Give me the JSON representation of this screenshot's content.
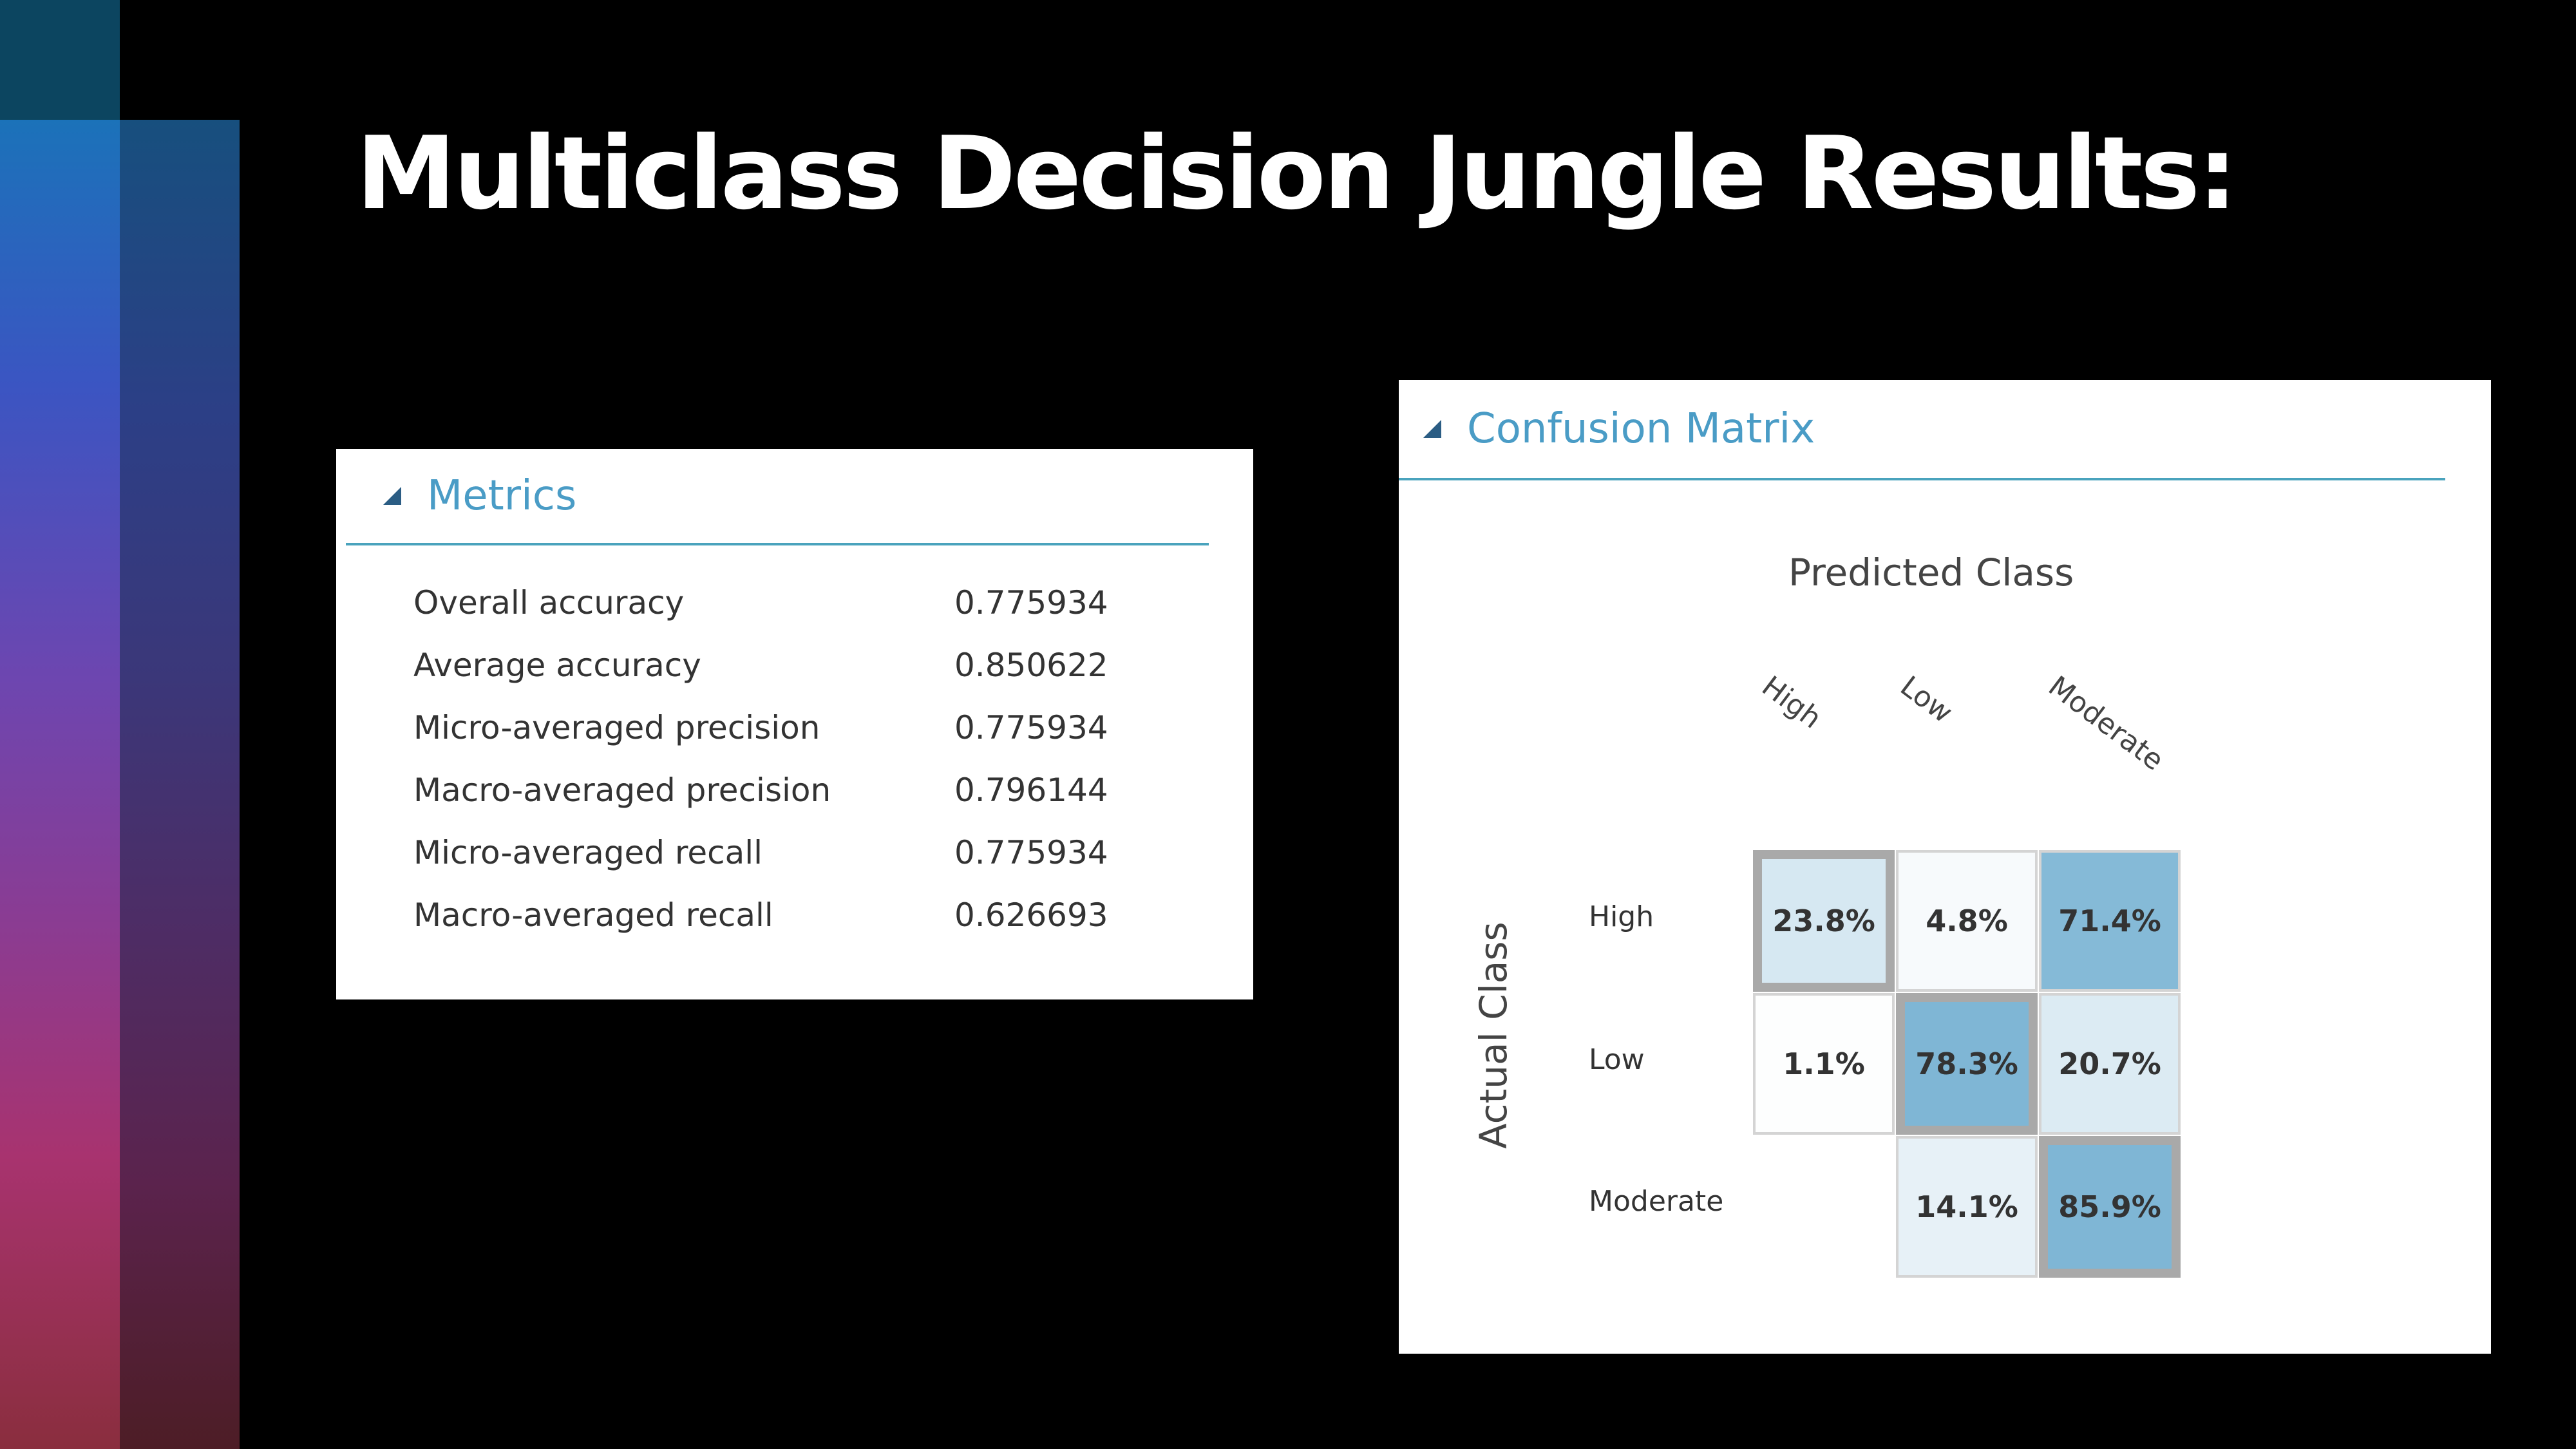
{
  "slide": {
    "title": "Multiclass Decision Jungle Results:"
  },
  "metrics": {
    "title": "Metrics",
    "rows": [
      {
        "label": "Overall accuracy",
        "value": "0.775934"
      },
      {
        "label": "Average accuracy",
        "value": "0.850622"
      },
      {
        "label": "Micro-averaged precision",
        "value": "0.775934"
      },
      {
        "label": "Macro-averaged precision",
        "value": "0.796144"
      },
      {
        "label": "Micro-averaged recall",
        "value": "0.775934"
      },
      {
        "label": "Macro-averaged recall",
        "value": "0.626693"
      }
    ]
  },
  "confusion": {
    "title": "Confusion Matrix",
    "predicted_label": "Predicted Class",
    "actual_label": "Actual Class",
    "classes": [
      "High",
      "Low",
      "Moderate"
    ],
    "cells": [
      [
        "23.8%",
        "4.8%",
        "71.4%"
      ],
      [
        "1.1%",
        "78.3%",
        "20.7%"
      ],
      [
        "",
        "14.1%",
        "85.9%"
      ]
    ],
    "cell_values": [
      [
        0.238,
        0.048,
        0.714
      ],
      [
        0.011,
        0.783,
        0.207
      ],
      [
        0.0,
        0.141,
        0.859
      ]
    ],
    "base_color": "#7fb6d5"
  }
}
